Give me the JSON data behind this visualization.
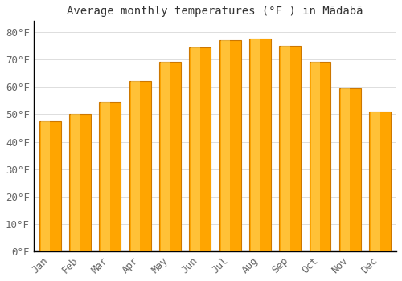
{
  "title": "Average monthly temperatures (°F ) in Mādabā",
  "months": [
    "Jan",
    "Feb",
    "Mar",
    "Apr",
    "May",
    "Jun",
    "Jul",
    "Aug",
    "Sep",
    "Oct",
    "Nov",
    "Dec"
  ],
  "values": [
    47.5,
    50.0,
    54.5,
    62.0,
    69.0,
    74.5,
    77.0,
    77.5,
    75.0,
    69.0,
    59.5,
    51.0
  ],
  "bar_color_face": "#FFA500",
  "bar_color_edge": "#CC7700",
  "bar_highlight": "#FFD966",
  "background_color": "#FFFFFF",
  "grid_color": "#DDDDDD",
  "ylim": [
    0,
    84
  ],
  "yticks": [
    0,
    10,
    20,
    30,
    40,
    50,
    60,
    70,
    80
  ],
  "ytick_labels": [
    "0°F",
    "10°F",
    "20°F",
    "30°F",
    "40°F",
    "50°F",
    "60°F",
    "70°F",
    "80°F"
  ],
  "title_fontsize": 10,
  "tick_fontsize": 9,
  "font_color": "#666666",
  "axis_color": "#000000"
}
